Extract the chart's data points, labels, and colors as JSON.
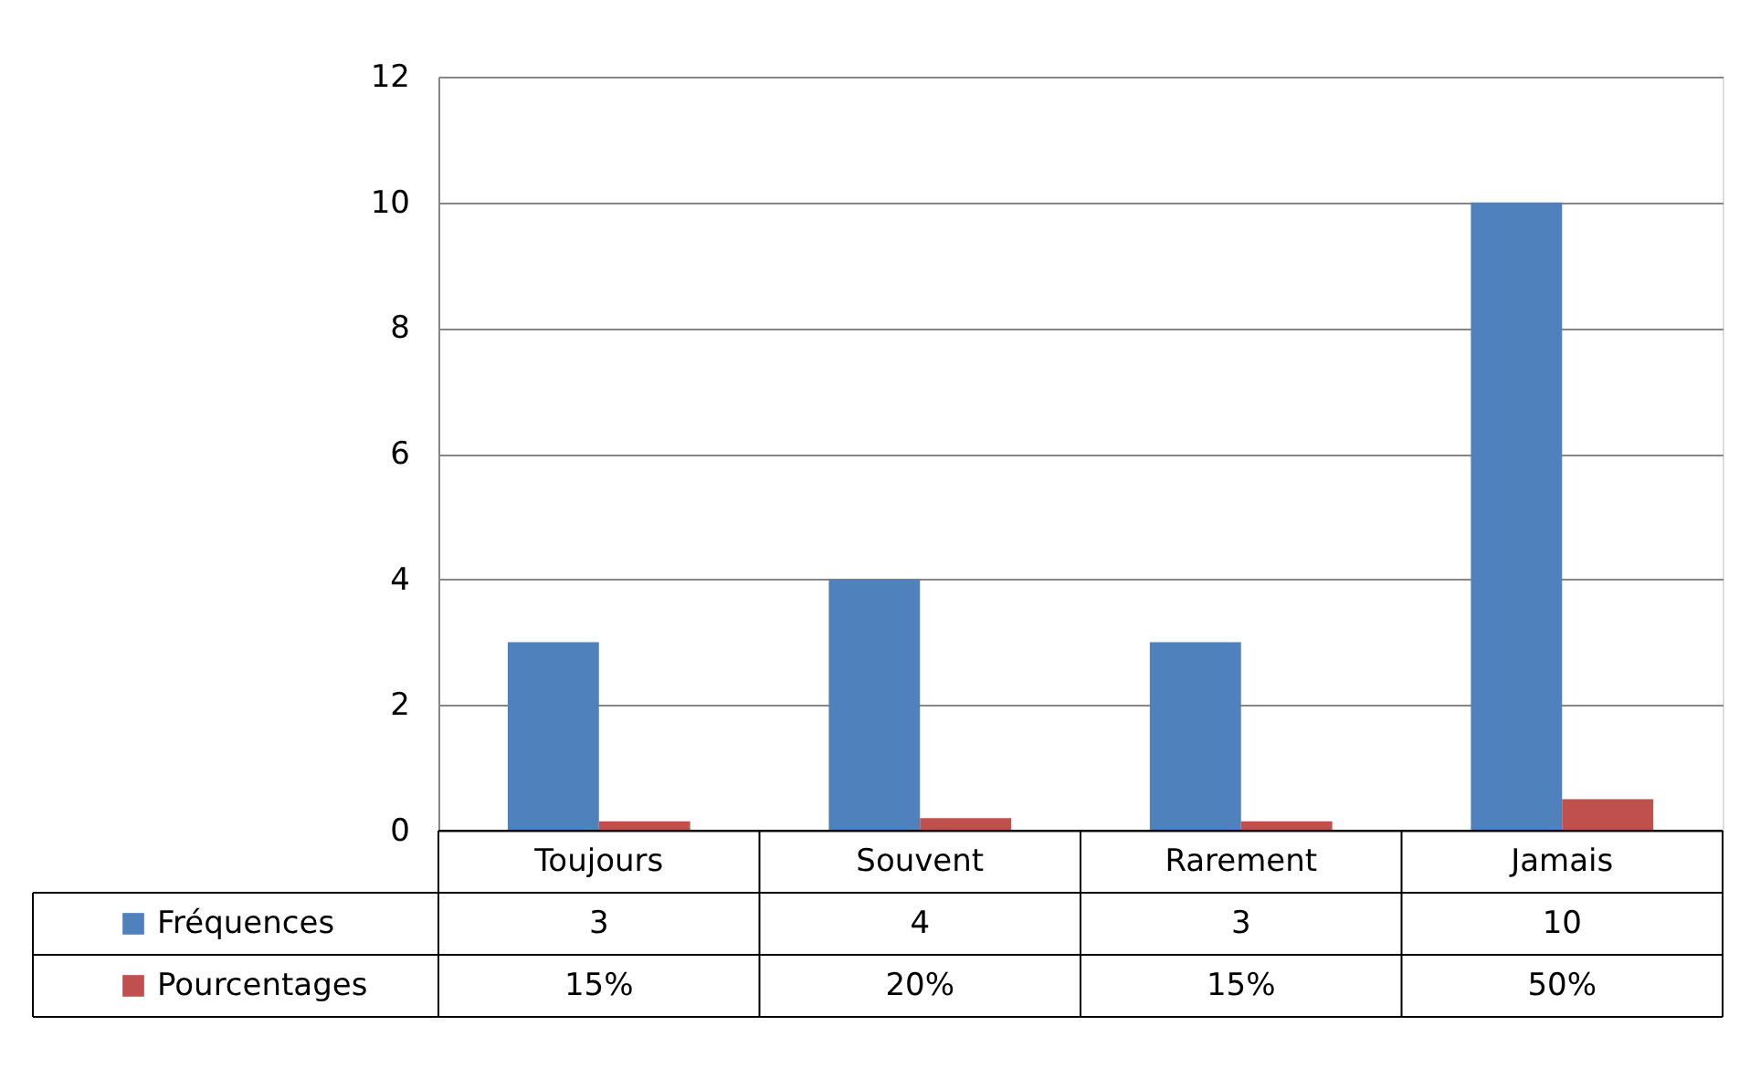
{
  "chart_data": {
    "type": "bar",
    "categories": [
      "Toujours",
      "Souvent",
      "Rarement",
      "Jamais"
    ],
    "series": [
      {
        "name": "Fréquences",
        "color": "#4f81bd",
        "values": [
          3,
          4,
          3,
          10
        ],
        "value_labels": [
          "3",
          "4",
          "3",
          "10"
        ]
      },
      {
        "name": "Pourcentages",
        "color": "#c0504d",
        "values": [
          0.15,
          0.2,
          0.15,
          0.5
        ],
        "value_labels": [
          "15%",
          "20%",
          "15%",
          "50%"
        ]
      }
    ],
    "ylim": [
      0,
      12
    ],
    "yticks": [
      0,
      2,
      4,
      6,
      8,
      10,
      12
    ],
    "grid": "y",
    "legend": "bottom left"
  }
}
